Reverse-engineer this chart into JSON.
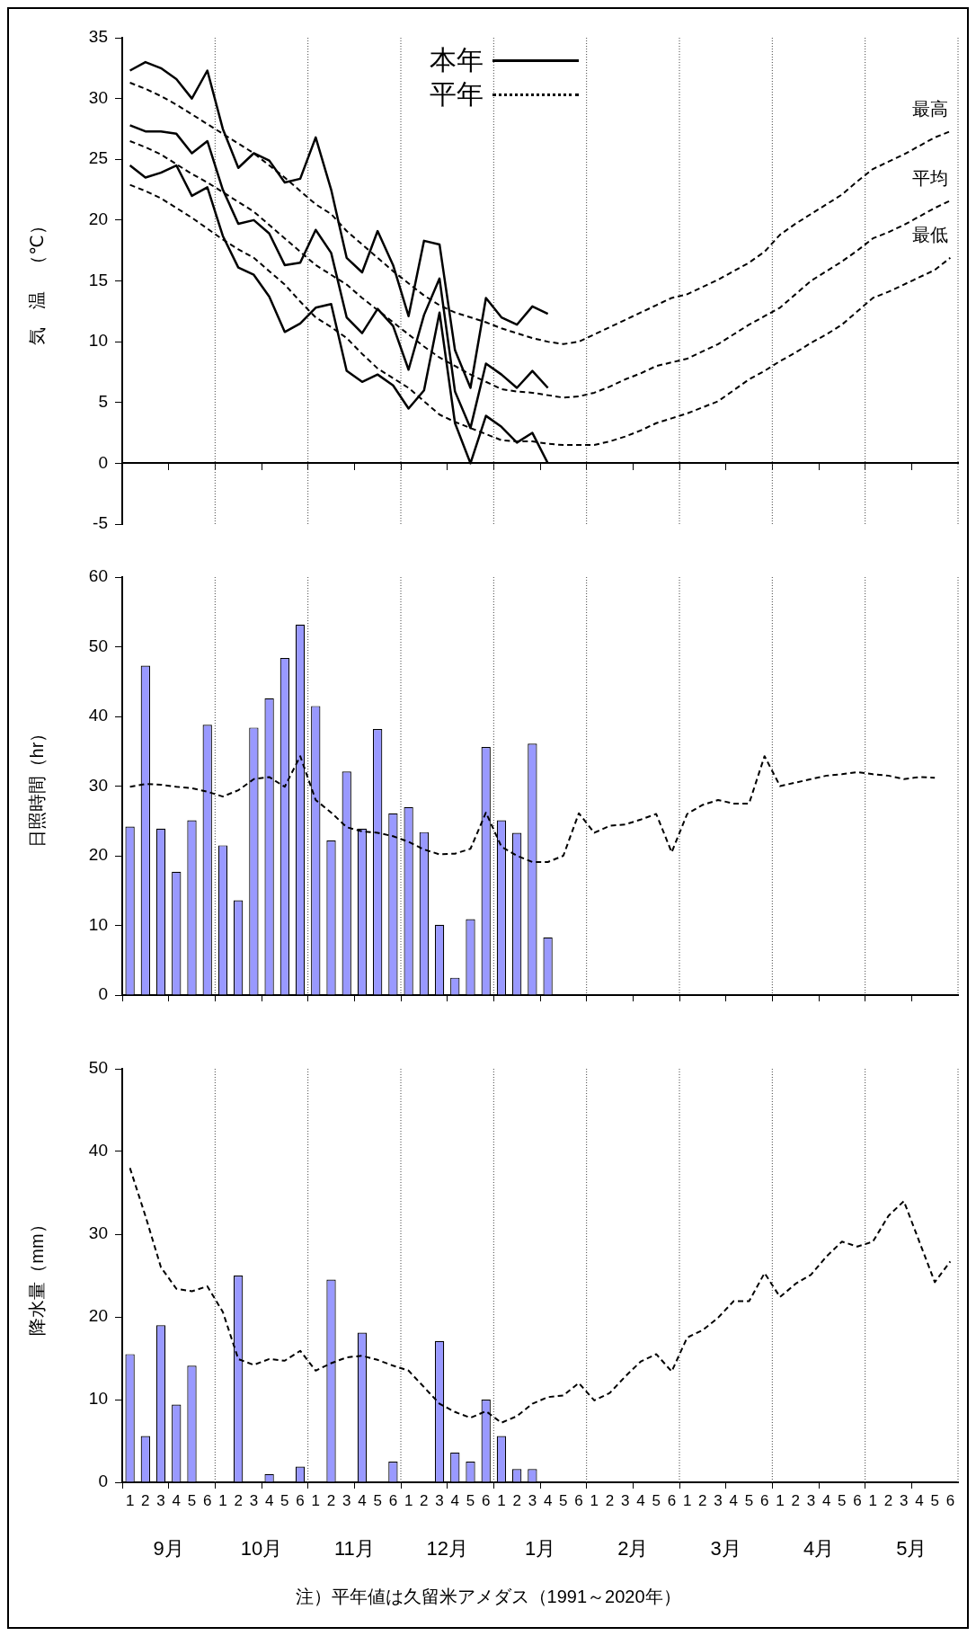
{
  "chart_data": [
    {
      "type": "line",
      "ylabel": "気　温　（℃）",
      "categories": [
        "1",
        "2",
        "3",
        "4",
        "5",
        "6",
        "1",
        "2",
        "3",
        "4",
        "5",
        "6",
        "1",
        "2",
        "3",
        "4",
        "5",
        "6",
        "1",
        "2",
        "3",
        "4",
        "5",
        "6",
        "1",
        "2",
        "3",
        "4",
        "5",
        "6",
        "1",
        "2",
        "3",
        "4",
        "5",
        "6",
        "1",
        "2",
        "3",
        "4",
        "5",
        "6",
        "1",
        "2",
        "3",
        "4",
        "5",
        "6",
        "1",
        "2",
        "3",
        "4",
        "5",
        "6"
      ],
      "ylim": [
        -5,
        35
      ],
      "yticks": [
        -5,
        0,
        5,
        10,
        15,
        20,
        25,
        30,
        35
      ],
      "grid": "x",
      "tick_labels": "y",
      "legend": "top",
      "annotations": [
        "本年",
        "平年"
      ],
      "series": [
        {
          "color": "#000000",
          "line_style": "solid",
          "values": [
            32.3,
            33.0,
            32.5,
            31.6,
            30.0,
            32.3,
            27.5,
            24.3,
            25.5,
            24.9,
            23.1,
            23.4,
            26.8,
            22.5,
            16.9,
            15.7,
            19.1,
            16.3,
            12.1,
            18.3,
            18.0,
            9.3,
            6.2,
            13.6,
            12.0,
            11.4,
            12.9,
            12.3,
            null,
            null,
            null,
            null,
            null,
            null,
            null,
            null,
            null,
            null,
            null,
            null,
            null,
            null,
            null,
            null,
            null,
            null,
            null,
            null,
            null,
            null,
            null,
            null,
            null,
            null
          ]
        },
        {
          "color": "#000000",
          "line_style": "solid",
          "values": [
            27.8,
            27.3,
            27.3,
            27.1,
            25.5,
            26.5,
            22.5,
            19.7,
            20.0,
            18.9,
            16.3,
            16.5,
            19.2,
            17.3,
            12.0,
            10.7,
            12.7,
            11.3,
            7.7,
            12.2,
            15.2,
            5.9,
            2.9,
            8.2,
            7.3,
            6.2,
            7.6,
            6.2,
            null,
            null,
            null,
            null,
            null,
            null,
            null,
            null,
            null,
            null,
            null,
            null,
            null,
            null,
            null,
            null,
            null,
            null,
            null,
            null,
            null,
            null,
            null,
            null,
            null,
            null
          ]
        },
        {
          "color": "#000000",
          "line_style": "solid",
          "values": [
            24.5,
            23.5,
            23.9,
            24.5,
            22.0,
            22.7,
            18.7,
            16.1,
            15.5,
            13.7,
            10.8,
            11.5,
            12.8,
            13.1,
            7.6,
            6.7,
            7.3,
            6.4,
            4.5,
            6.0,
            12.4,
            3.3,
            0,
            3.9,
            3.0,
            1.7,
            2.5,
            0,
            null,
            null,
            null,
            null,
            null,
            null,
            null,
            null,
            null,
            null,
            null,
            null,
            null,
            null,
            null,
            null,
            null,
            null,
            null,
            null,
            null,
            null,
            null,
            null,
            null,
            null
          ]
        },
        {
          "name": "最高",
          "color": "#000000",
          "line_style": "dashed",
          "values": [
            31.3,
            30.8,
            30.2,
            29.5,
            28.7,
            27.9,
            27.1,
            26.3,
            25.5,
            24.5,
            23.5,
            22.4,
            21.3,
            20.5,
            19.1,
            18.0,
            16.9,
            15.8,
            14.8,
            13.8,
            13.0,
            12.4,
            12.0,
            11.6,
            11.1,
            10.7,
            10.3,
            10.0,
            9.8,
            10.0,
            10.6,
            11.2,
            11.8,
            12.4,
            13.0,
            13.6,
            13.9,
            14.5,
            15.1,
            15.8,
            16.5,
            17.4,
            18.8,
            19.7,
            20.5,
            21.3,
            22.1,
            23.2,
            24.2,
            24.8,
            25.4,
            26.1,
            26.8,
            27.3
          ]
        },
        {
          "name": "平均",
          "color": "#000000",
          "line_style": "dashed",
          "values": [
            26.5,
            26.0,
            25.4,
            24.6,
            23.8,
            23.1,
            22.3,
            21.5,
            20.7,
            19.6,
            18.5,
            17.4,
            16.3,
            15.5,
            14.7,
            13.6,
            12.6,
            11.6,
            10.6,
            9.6,
            8.7,
            8.0,
            7.3,
            6.7,
            6.1,
            5.9,
            5.8,
            5.6,
            5.4,
            5.5,
            5.8,
            6.3,
            6.9,
            7.4,
            8.0,
            8.3,
            8.6,
            9.2,
            9.8,
            10.6,
            11.4,
            12.1,
            12.8,
            13.9,
            15.0,
            15.8,
            16.6,
            17.5,
            18.5,
            19.0,
            19.6,
            20.3,
            21.0,
            21.6
          ]
        },
        {
          "name": "最低",
          "color": "#000000",
          "line_style": "dashed",
          "values": [
            22.9,
            22.4,
            21.8,
            21.0,
            20.2,
            19.3,
            18.4,
            17.6,
            16.9,
            15.8,
            14.7,
            13.3,
            12.0,
            11.2,
            10.3,
            9.0,
            7.8,
            7.0,
            6.2,
            5.1,
            4.0,
            3.4,
            2.9,
            2.4,
            1.9,
            1.8,
            1.8,
            1.6,
            1.5,
            1.5,
            1.5,
            1.8,
            2.2,
            2.7,
            3.3,
            3.7,
            4.1,
            4.6,
            5.1,
            6.0,
            6.9,
            7.6,
            8.4,
            9.1,
            9.9,
            10.6,
            11.4,
            12.5,
            13.6,
            14.1,
            14.7,
            15.3,
            15.9,
            16.9
          ]
        }
      ]
    },
    {
      "type": "bar",
      "ylabel": "日照時間（hr）",
      "categories": [
        "1",
        "2",
        "3",
        "4",
        "5",
        "6",
        "1",
        "2",
        "3",
        "4",
        "5",
        "6",
        "1",
        "2",
        "3",
        "4",
        "5",
        "6",
        "1",
        "2",
        "3",
        "4",
        "5",
        "6",
        "1",
        "2",
        "3",
        "4",
        "5",
        "6",
        "1",
        "2",
        "3",
        "4",
        "5",
        "6",
        "1",
        "2",
        "3",
        "4",
        "5",
        "6",
        "1",
        "2",
        "3",
        "4",
        "5",
        "6",
        "1",
        "2",
        "3",
        "4",
        "5",
        "6"
      ],
      "ylim": [
        0,
        60
      ],
      "yticks": [
        0,
        10,
        20,
        30,
        40,
        50,
        60
      ],
      "grid": "x",
      "tick_labels": "y",
      "series": [
        {
          "type": "bar",
          "color": "#9999ff",
          "values": [
            24.2,
            47.3,
            23.9,
            17.7,
            25.1,
            38.8,
            21.5,
            13.6,
            38.4,
            42.6,
            48.4,
            53.2,
            41.5,
            22.2,
            32.1,
            23.9,
            38.2,
            26.1,
            27.0,
            23.4,
            10.1,
            2.5,
            10.9,
            35.6,
            25.1,
            23.3,
            36.1,
            8.3,
            null,
            null,
            null,
            null,
            null,
            null,
            null,
            null,
            null,
            null,
            null,
            null,
            null,
            null,
            null,
            null,
            null,
            null,
            null,
            null,
            null,
            null,
            null,
            null,
            null,
            null
          ]
        },
        {
          "type": "line",
          "color": "#000000",
          "line_style": "dashed",
          "values": [
            29.9,
            30.3,
            30.2,
            29.9,
            29.7,
            29.2,
            28.5,
            29.4,
            31.0,
            31.3,
            29.9,
            34.3,
            28.0,
            26.2,
            24.1,
            23.5,
            23.3,
            22.8,
            22.0,
            20.9,
            20.2,
            20.3,
            21.0,
            26.2,
            21.3,
            20.0,
            19.1,
            19.1,
            20.0,
            26.1,
            23.3,
            24.3,
            24.5,
            25.2,
            26.0,
            20.5,
            26.0,
            27.3,
            28.0,
            27.5,
            27.5,
            34.3,
            30.0,
            30.5,
            31.0,
            31.5,
            31.7,
            32.0,
            31.7,
            31.5,
            31.0,
            31.3,
            31.2,
            null
          ]
        }
      ]
    },
    {
      "type": "bar",
      "ylabel": "降水量（mm）",
      "categories": [
        "1",
        "2",
        "3",
        "4",
        "5",
        "6",
        "1",
        "2",
        "3",
        "4",
        "5",
        "6",
        "1",
        "2",
        "3",
        "4",
        "5",
        "6",
        "1",
        "2",
        "3",
        "4",
        "5",
        "6",
        "1",
        "2",
        "3",
        "4",
        "5",
        "6",
        "1",
        "2",
        "3",
        "4",
        "5",
        "6",
        "1",
        "2",
        "3",
        "4",
        "5",
        "6",
        "1",
        "2",
        "3",
        "4",
        "5",
        "6",
        "1",
        "2",
        "3",
        "4",
        "5",
        "6"
      ],
      "ylim": [
        0,
        50
      ],
      "yticks": [
        0,
        10,
        20,
        30,
        40,
        50
      ],
      "grid": "x",
      "annotations": [
        "9月",
        "10月",
        "11月",
        "12月",
        "1月",
        "2月",
        "3月",
        "4月",
        "5月",
        "注）平年値は久留米アメダス（1991～2020年）"
      ],
      "series": [
        {
          "type": "bar",
          "color": "#9999ff",
          "values": [
            15.5,
            5.6,
            19.0,
            9.4,
            14.1,
            0,
            0,
            25.0,
            0,
            1.0,
            0,
            1.9,
            0,
            24.5,
            0,
            18.1,
            0,
            2.5,
            0,
            0,
            17.1,
            3.6,
            2.5,
            10.0,
            5.6,
            1.6,
            1.6,
            0,
            null,
            null,
            null,
            null,
            null,
            null,
            null,
            null,
            null,
            null,
            null,
            null,
            null,
            null,
            null,
            null,
            null,
            null,
            null,
            null,
            null,
            null,
            null,
            null,
            null,
            null
          ]
        },
        {
          "type": "line",
          "color": "#000000",
          "line_style": "dashed",
          "values": [
            38.0,
            32.2,
            26.0,
            23.4,
            23.1,
            23.7,
            20.6,
            14.9,
            14.2,
            14.9,
            14.7,
            15.9,
            13.5,
            14.4,
            15.1,
            15.3,
            14.8,
            14.1,
            13.5,
            11.5,
            9.5,
            8.5,
            7.8,
            8.6,
            7.2,
            8.0,
            9.5,
            10.3,
            10.5,
            12.0,
            9.9,
            10.8,
            12.8,
            14.6,
            15.5,
            13.4,
            17.5,
            18.4,
            19.9,
            21.9,
            21.9,
            25.3,
            22.4,
            24.0,
            25.1,
            27.3,
            29.1,
            28.5,
            29.1,
            32.2,
            34.0,
            29.1,
            24.2,
            26.7
          ]
        }
      ]
    }
  ]
}
